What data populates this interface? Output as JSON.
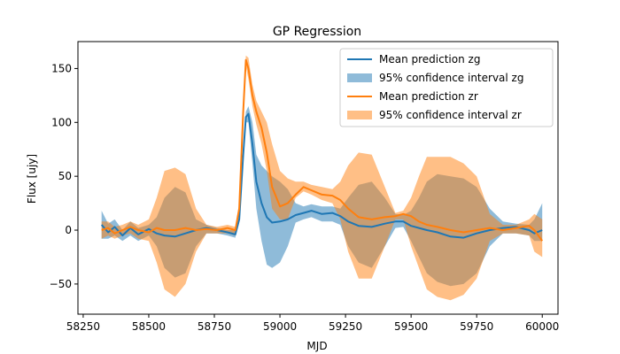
{
  "chart_data": {
    "type": "area",
    "title": "GP Regression",
    "xlabel": "MJD",
    "ylabel": "Flux [ujy]",
    "xlim": [
      58230,
      60060
    ],
    "ylim": [
      -78,
      175
    ],
    "xticks": [
      58250,
      58500,
      58750,
      59000,
      59250,
      59500,
      59750,
      60000
    ],
    "yticks": [
      -50,
      0,
      50,
      100,
      150
    ],
    "grid": false,
    "legend_position": "top-right",
    "colors": {
      "zg": "#1f77b4",
      "zr": "#ff7f0e"
    },
    "series": [
      {
        "name": "Mean prediction zg",
        "kind": "line",
        "band": "zg",
        "x": [
          58320,
          58345,
          58370,
          58400,
          58430,
          58460,
          58500,
          58530,
          58560,
          58600,
          58640,
          58680,
          58720,
          58760,
          58800,
          58830,
          58845,
          58860,
          58870,
          58880,
          58895,
          58910,
          58930,
          58950,
          58970,
          59000,
          59030,
          59060,
          59090,
          59120,
          59160,
          59200,
          59230,
          59260,
          59300,
          59350,
          59400,
          59440,
          59470,
          59500,
          59530,
          59560,
          59600,
          59650,
          59700,
          59750,
          59800,
          59850,
          59900,
          59950,
          59970,
          60000
        ],
        "y": [
          5,
          -2,
          3,
          -5,
          2,
          -4,
          1,
          -3,
          -5,
          -6,
          -3,
          0,
          2,
          0,
          -2,
          -4,
          10,
          70,
          105,
          108,
          80,
          45,
          25,
          12,
          7,
          8,
          10,
          14,
          16,
          18,
          15,
          16,
          13,
          8,
          4,
          3,
          6,
          8,
          8,
          4,
          2,
          0,
          -2,
          -6,
          -7,
          -3,
          0,
          2,
          3,
          0,
          -3,
          0
        ]
      },
      {
        "name": "95% confidence interval zg",
        "kind": "band",
        "band": "zg",
        "x": [
          58320,
          58345,
          58370,
          58400,
          58430,
          58460,
          58500,
          58530,
          58560,
          58600,
          58640,
          58680,
          58720,
          58760,
          58800,
          58830,
          58845,
          58860,
          58870,
          58880,
          58895,
          58910,
          58930,
          58950,
          58970,
          59000,
          59030,
          59060,
          59090,
          59120,
          59160,
          59200,
          59230,
          59260,
          59300,
          59350,
          59400,
          59440,
          59470,
          59500,
          59530,
          59560,
          59600,
          59650,
          59700,
          59750,
          59800,
          59850,
          59900,
          59950,
          59970,
          60000
        ],
        "lower": [
          -8,
          -8,
          -5,
          -10,
          -5,
          -10,
          -5,
          -15,
          -35,
          -44,
          -40,
          -15,
          -3,
          -3,
          -5,
          -7,
          8,
          65,
          100,
          100,
          62,
          20,
          -10,
          -32,
          -35,
          -30,
          -15,
          7,
          10,
          12,
          8,
          8,
          5,
          -15,
          -30,
          -35,
          -15,
          2,
          3,
          -10,
          -25,
          -40,
          -48,
          -52,
          -50,
          -40,
          -15,
          -3,
          -3,
          -5,
          -10,
          -10
        ],
        "upper": [
          18,
          6,
          10,
          0,
          8,
          2,
          5,
          12,
          30,
          40,
          35,
          10,
          5,
          2,
          0,
          0,
          12,
          75,
          110,
          115,
          100,
          70,
          60,
          55,
          50,
          45,
          38,
          25,
          22,
          24,
          22,
          22,
          20,
          30,
          42,
          45,
          30,
          15,
          14,
          18,
          30,
          45,
          52,
          50,
          48,
          40,
          20,
          8,
          6,
          5,
          10,
          25
        ]
      },
      {
        "name": "Mean prediction zr",
        "kind": "line",
        "band": "zr",
        "x": [
          58320,
          58345,
          58370,
          58400,
          58430,
          58460,
          58500,
          58530,
          58560,
          58600,
          58640,
          58680,
          58720,
          58760,
          58800,
          58830,
          58845,
          58860,
          58870,
          58880,
          58895,
          58910,
          58930,
          58950,
          58970,
          59000,
          59030,
          59060,
          59090,
          59120,
          59160,
          59200,
          59230,
          59260,
          59300,
          59350,
          59400,
          59440,
          59470,
          59500,
          59530,
          59560,
          59600,
          59650,
          59700,
          59750,
          59800,
          59850,
          59900,
          59950,
          59970,
          60000
        ],
        "y": [
          0,
          2,
          -3,
          0,
          3,
          0,
          -2,
          2,
          0,
          0,
          2,
          0,
          1,
          0,
          2,
          0,
          20,
          110,
          158,
          150,
          125,
          110,
          95,
          72,
          40,
          22,
          25,
          33,
          40,
          37,
          33,
          32,
          28,
          20,
          12,
          10,
          12,
          13,
          15,
          13,
          8,
          5,
          3,
          0,
          -2,
          0,
          2,
          0,
          2,
          4,
          0,
          -10
        ]
      },
      {
        "name": "95% confidence interval zr",
        "kind": "band",
        "band": "zr",
        "x": [
          58320,
          58345,
          58370,
          58400,
          58430,
          58460,
          58500,
          58530,
          58560,
          58600,
          58640,
          58680,
          58720,
          58760,
          58800,
          58830,
          58845,
          58860,
          58870,
          58880,
          58895,
          58910,
          58930,
          58950,
          58970,
          59000,
          59030,
          59060,
          59090,
          59120,
          59160,
          59200,
          59230,
          59260,
          59300,
          59350,
          59400,
          59440,
          59470,
          59500,
          59530,
          59560,
          59600,
          59650,
          59700,
          59750,
          59800,
          59850,
          59900,
          59950,
          59970,
          60000
        ],
        "lower": [
          -8,
          -5,
          -8,
          -5,
          -3,
          -8,
          -10,
          -30,
          -55,
          -62,
          -50,
          -20,
          -3,
          -3,
          -3,
          -5,
          15,
          105,
          152,
          140,
          115,
          98,
          80,
          55,
          20,
          10,
          10,
          30,
          36,
          33,
          28,
          25,
          10,
          -20,
          -45,
          -45,
          -15,
          10,
          10,
          -15,
          -35,
          -55,
          -62,
          -65,
          -60,
          -45,
          -10,
          -3,
          -3,
          -5,
          -20,
          -25
        ],
        "upper": [
          8,
          8,
          3,
          5,
          8,
          5,
          10,
          30,
          55,
          58,
          52,
          20,
          5,
          3,
          5,
          3,
          25,
          115,
          162,
          160,
          135,
          120,
          110,
          100,
          80,
          55,
          48,
          45,
          45,
          42,
          40,
          38,
          45,
          60,
          72,
          70,
          40,
          16,
          18,
          30,
          50,
          68,
          68,
          68,
          62,
          50,
          15,
          5,
          5,
          10,
          15,
          10
        ]
      }
    ]
  }
}
